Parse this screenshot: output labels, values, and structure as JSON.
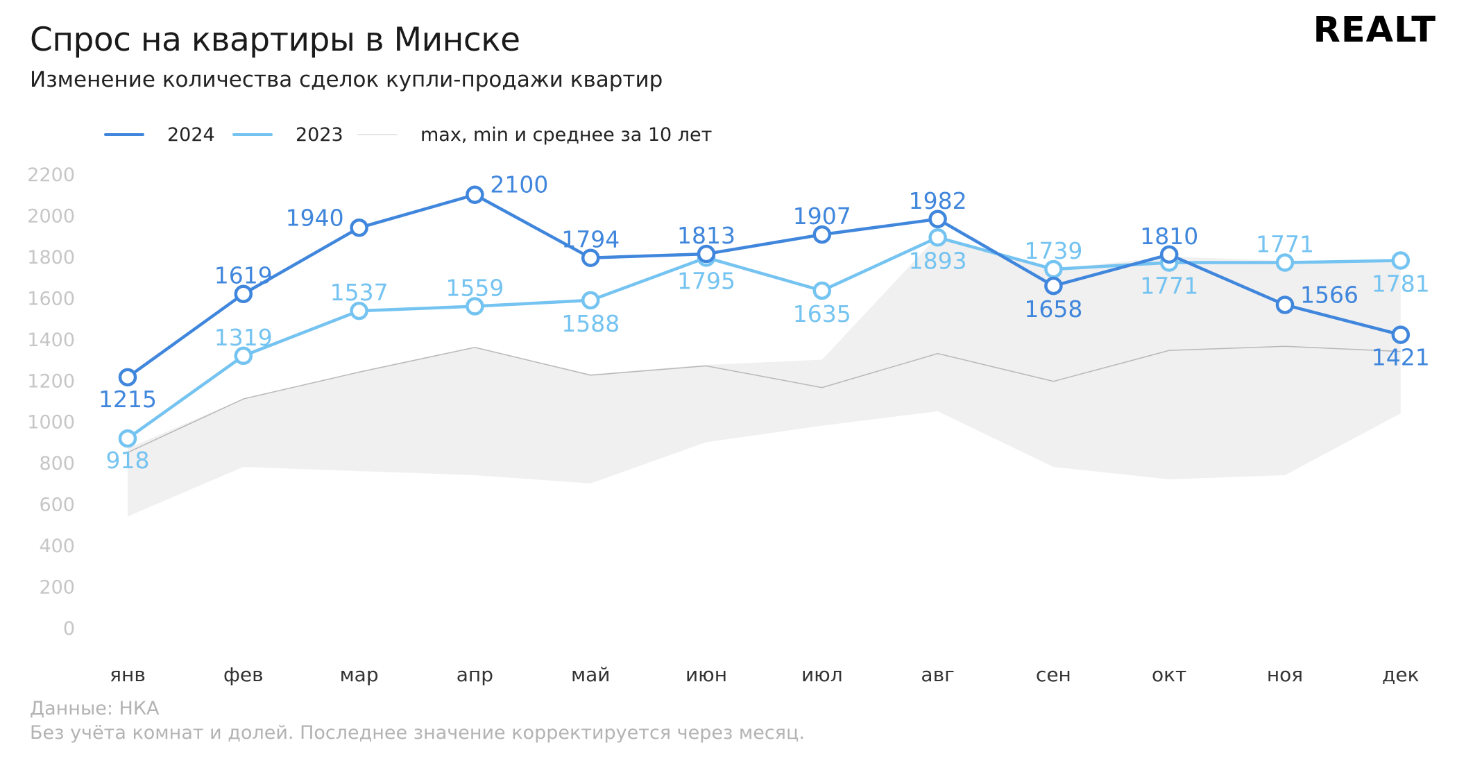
{
  "header": {
    "title": "Спрос на квартиры в Минске",
    "subtitle": "Изменение количества сделок купли-продажи квартир",
    "logo_text": "REALT"
  },
  "legend": [
    {
      "label": "2024",
      "color": "#3f86dc"
    },
    {
      "label": "2023",
      "color": "#74c3f1"
    },
    {
      "label": "max, min и среднее за 10 лет",
      "color": "#e6e6e6"
    }
  ],
  "footnotes": {
    "source": "Данные: НКА",
    "note": "Без учёта комнат и долей. Последнее значение корректируется через месяц."
  },
  "colors": {
    "series_2024": "#3f86dc",
    "series_2023": "#74c3f1",
    "band": "#f0f0f0",
    "average_line": "#b8b8b8",
    "tick_label": "#c6c6c6",
    "category_label": "#333333"
  },
  "chart_data": {
    "type": "line",
    "categories": [
      "янв",
      "фев",
      "мар",
      "апр",
      "май",
      "июн",
      "июл",
      "авг",
      "сен",
      "окт",
      "ноя",
      "дек"
    ],
    "ylim": [
      0,
      2200
    ],
    "yticks": [
      0,
      200,
      400,
      600,
      800,
      1000,
      1200,
      1400,
      1600,
      1800,
      2000,
      2200
    ],
    "grid": false,
    "series": [
      {
        "name": "2024",
        "values": [
          1215,
          1619,
          1940,
          2100,
          1794,
          1813,
          1907,
          1982,
          1658,
          1810,
          1566,
          1421
        ]
      },
      {
        "name": "2023",
        "values": [
          918,
          1319,
          1537,
          1559,
          1588,
          1795,
          1635,
          1893,
          1739,
          1771,
          1771,
          1781
        ]
      }
    ],
    "band": {
      "name": "max, min и среднее за 10 лет",
      "max": [
        870,
        1110,
        1240,
        1360,
        1230,
        1275,
        1300,
        1900,
        1739,
        1800,
        1780,
        1781
      ],
      "min": [
        540,
        780,
        760,
        740,
        700,
        900,
        980,
        1050,
        780,
        720,
        740,
        1040
      ],
      "avg": [
        850,
        1110,
        1240,
        1360,
        1225,
        1270,
        1165,
        1330,
        1195,
        1345,
        1365,
        1340
      ]
    }
  }
}
